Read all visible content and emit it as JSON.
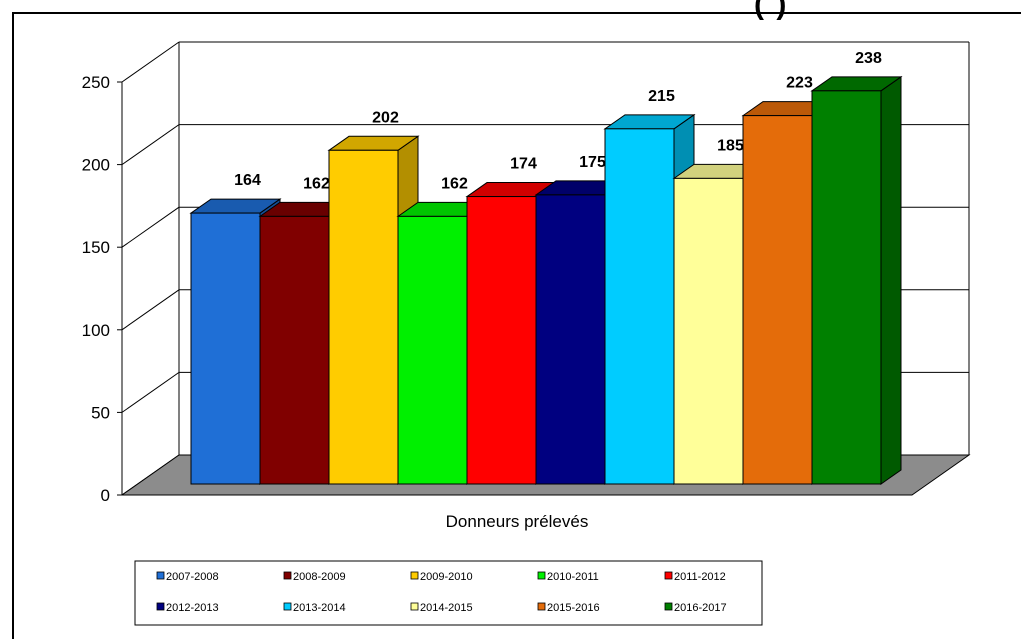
{
  "header": {
    "partial_title": "(          )"
  },
  "chart_data": {
    "type": "bar",
    "title": "",
    "xlabel": "Donneurs prélevés",
    "ylabel": "",
    "ylim": [
      0,
      250
    ],
    "yticks": [
      0,
      50,
      100,
      150,
      200,
      250
    ],
    "grid": true,
    "legend_position": "bottom",
    "categories": [
      "Donneurs prélevés"
    ],
    "series": [
      {
        "name": "2007-2008",
        "values": [
          164
        ],
        "color": "#1F6FD6"
      },
      {
        "name": "2008-2009",
        "values": [
          162
        ],
        "color": "#800000"
      },
      {
        "name": "2009-2010",
        "values": [
          202
        ],
        "color": "#FFCC00"
      },
      {
        "name": "2010-2011",
        "values": [
          162
        ],
        "color": "#00F000"
      },
      {
        "name": "2011-2012",
        "values": [
          174
        ],
        "color": "#FF0000"
      },
      {
        "name": "2012-2013",
        "values": [
          175
        ],
        "color": "#000080"
      },
      {
        "name": "2013-2014",
        "values": [
          215
        ],
        "color": "#00CCFF"
      },
      {
        "name": "2014-2015",
        "values": [
          185
        ],
        "color": "#FFFF99"
      },
      {
        "name": "2015-2016",
        "values": [
          223
        ],
        "color": "#E46C0A"
      },
      {
        "name": "2016-2017",
        "values": [
          238
        ],
        "color": "#008000"
      }
    ]
  }
}
